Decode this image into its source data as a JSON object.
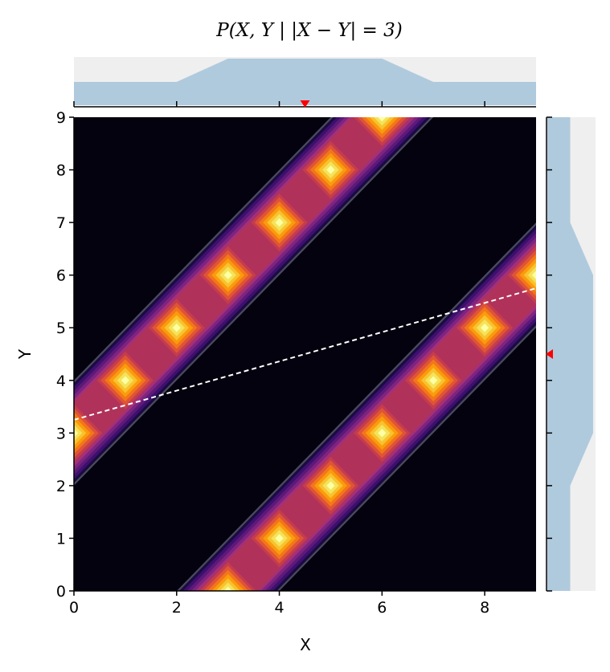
{
  "chart_data": {
    "type": "heatmap",
    "title": "P(X, Y | |X − Y| = 3)",
    "xlabel": "X",
    "ylabel": "Y",
    "xlim": [
      0,
      9
    ],
    "ylim": [
      0,
      9
    ],
    "xticks": [
      0,
      2,
      4,
      6,
      8
    ],
    "yticks": [
      0,
      1,
      2,
      3,
      4,
      5,
      6,
      7,
      8,
      9
    ],
    "colormap": "inferno",
    "support_points": [
      [
        0,
        3
      ],
      [
        1,
        4
      ],
      [
        2,
        5
      ],
      [
        3,
        6
      ],
      [
        4,
        7
      ],
      [
        5,
        8
      ],
      [
        6,
        9
      ],
      [
        3,
        0
      ],
      [
        4,
        1
      ],
      [
        5,
        2
      ],
      [
        6,
        3
      ],
      [
        7,
        4
      ],
      [
        8,
        5
      ],
      [
        9,
        6
      ]
    ],
    "regression_line": {
      "x": [
        0,
        9
      ],
      "y": [
        3.25,
        5.75
      ],
      "color": "#ffffff",
      "style": "dashed"
    },
    "marginal_x": {
      "x": [
        0,
        1,
        2,
        3,
        4,
        5,
        6,
        7,
        8,
        9
      ],
      "values": [
        1,
        1,
        1,
        2,
        2,
        2,
        2,
        1,
        1,
        1
      ],
      "mean": 4.5
    },
    "marginal_y": {
      "y": [
        0,
        1,
        2,
        3,
        4,
        5,
        6,
        7,
        8,
        9
      ],
      "values": [
        1,
        1,
        1,
        2,
        2,
        2,
        2,
        1,
        1,
        1
      ],
      "mean": 4.5
    },
    "colors": {
      "marginal_fill": "#b0cadd",
      "marginal_bg": "#efefef",
      "mean_marker": "#ff0000",
      "background": "#03020e"
    },
    "grid": false
  }
}
